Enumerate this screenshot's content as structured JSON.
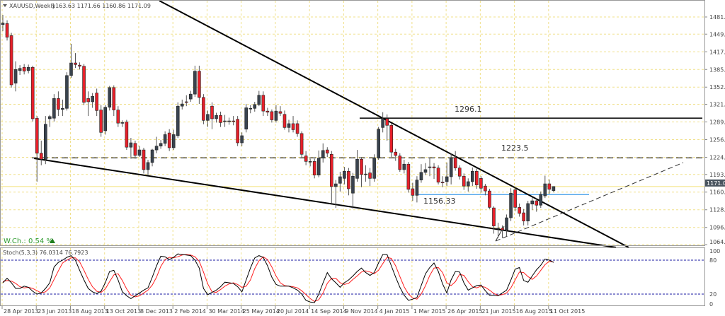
{
  "header": {
    "symbol": "XAUUSD,Weekly",
    "ohlc": "1163.63 1171.66 1160.86 1171.09"
  },
  "weekly_change": {
    "label": "W.Ch.: 0.54 %",
    "direction": "up"
  },
  "stoch_header": "Stoch(5,3,3) 76.0314 76.7923",
  "colors": {
    "bull": "#39434e",
    "bear": "#e8202a",
    "grid": "#f0e08a",
    "price_line": "#f3e27a",
    "stoch_k": "#000000",
    "stoch_d": "#ff2020",
    "stoch_levels": "#1a1aa0",
    "support_line": "#3a9ae8",
    "wch_text": "#2e9b2e"
  },
  "annotations": [
    {
      "name": "resistance-1296",
      "label": "1296.1",
      "price": 1296.1,
      "style": "solid"
    },
    {
      "name": "level-1223",
      "label": "1223.5",
      "price": 1223.5,
      "style": "dashed"
    },
    {
      "name": "support-1156",
      "label": "1156.33",
      "price": 1156.33,
      "style": "solid-blue"
    }
  ],
  "chart_data": [
    {
      "type": "candlestick",
      "title": "XAUUSD,Weekly",
      "ylim": [
        1064.95,
        1481.05
      ],
      "grid": true,
      "y_ticks": [
        "1481.05",
        "1449.70",
        "1417.40",
        "1385.10",
        "1352.80",
        "1321.45",
        "1289.15",
        "1256.85",
        "1224.55",
        "1193.20",
        "1160.90",
        "1128.60",
        "1096.30",
        "1064.95"
      ],
      "last_price": "1171.09",
      "x_ticks": [
        "28 Apr 2013",
        "23 Jun 2013",
        "18 Aug 2013",
        "13 Oct 2013",
        "8 Dec 2013",
        "2 Feb 2014",
        "30 Mar 2014",
        "25 May 2014",
        "20 Jul 2014",
        "14 Sep 2014",
        "9 Nov 2014",
        "4 Jan 2015",
        "1 Mar 2015",
        "26 Apr 2015",
        "21 Jun 2015",
        "16 Aug 2015",
        "11 Oct 2015"
      ],
      "ohlc": [
        [
          1467,
          1485,
          1455,
          1470
        ],
        [
          1469,
          1475,
          1438,
          1444
        ],
        [
          1447,
          1452,
          1352,
          1357
        ],
        [
          1360,
          1400,
          1345,
          1385
        ],
        [
          1383,
          1393,
          1375,
          1387
        ],
        [
          1389,
          1395,
          1376,
          1382
        ],
        [
          1383,
          1394,
          1378,
          1389
        ],
        [
          1389,
          1392,
          1290,
          1295
        ],
        [
          1296,
          1300,
          1180,
          1232
        ],
        [
          1232,
          1255,
          1210,
          1221
        ],
        [
          1221,
          1300,
          1212,
          1285
        ],
        [
          1295,
          1302,
          1280,
          1299
        ],
        [
          1296,
          1340,
          1290,
          1332
        ],
        [
          1332,
          1345,
          1300,
          1312
        ],
        [
          1312,
          1330,
          1300,
          1314
        ],
        [
          1314,
          1380,
          1310,
          1374
        ],
        [
          1374,
          1432,
          1370,
          1397
        ],
        [
          1397,
          1415,
          1388,
          1394
        ],
        [
          1393,
          1398,
          1385,
          1391
        ],
        [
          1391,
          1395,
          1320,
          1325
        ],
        [
          1332,
          1345,
          1300,
          1326
        ],
        [
          1326,
          1342,
          1315,
          1336
        ],
        [
          1342,
          1350,
          1300,
          1310
        ],
        [
          1311,
          1320,
          1262,
          1270
        ],
        [
          1273,
          1320,
          1266,
          1316
        ],
        [
          1316,
          1355,
          1310,
          1352
        ],
        [
          1352,
          1356,
          1300,
          1311
        ],
        [
          1311,
          1318,
          1280,
          1287
        ],
        [
          1287,
          1292,
          1280,
          1288
        ],
        [
          1289,
          1293,
          1238,
          1243
        ],
        [
          1243,
          1260,
          1222,
          1251
        ],
        [
          1250,
          1255,
          1222,
          1228
        ],
        [
          1228,
          1245,
          1225,
          1238
        ],
        [
          1238,
          1242,
          1195,
          1202
        ],
        [
          1202,
          1220,
          1192,
          1215
        ],
        [
          1215,
          1240,
          1208,
          1238
        ],
        [
          1238,
          1262,
          1232,
          1245
        ],
        [
          1245,
          1256,
          1240,
          1250
        ],
        [
          1250,
          1272,
          1245,
          1266
        ],
        [
          1269,
          1276,
          1236,
          1242
        ],
        [
          1242,
          1275,
          1238,
          1266
        ],
        [
          1264,
          1325,
          1260,
          1318
        ],
        [
          1318,
          1330,
          1312,
          1322
        ],
        [
          1326,
          1338,
          1318,
          1325
        ],
        [
          1331,
          1346,
          1326,
          1340
        ],
        [
          1340,
          1392,
          1335,
          1382
        ],
        [
          1382,
          1392,
          1322,
          1334
        ],
        [
          1334,
          1340,
          1285,
          1292
        ],
        [
          1292,
          1310,
          1280,
          1303
        ],
        [
          1318,
          1325,
          1276,
          1295
        ],
        [
          1295,
          1306,
          1288,
          1301
        ],
        [
          1301,
          1308,
          1280,
          1288
        ],
        [
          1291,
          1302,
          1280,
          1291
        ],
        [
          1291,
          1297,
          1284,
          1291
        ],
        [
          1291,
          1300,
          1283,
          1290
        ],
        [
          1294,
          1300,
          1245,
          1251
        ],
        [
          1251,
          1270,
          1245,
          1264
        ],
        [
          1276,
          1322,
          1270,
          1315
        ],
        [
          1314,
          1320,
          1305,
          1314
        ],
        [
          1314,
          1326,
          1308,
          1321
        ],
        [
          1321,
          1346,
          1318,
          1338
        ],
        [
          1338,
          1345,
          1300,
          1309
        ],
        [
          1309,
          1315,
          1300,
          1307
        ],
        [
          1308,
          1312,
          1288,
          1293
        ],
        [
          1292,
          1320,
          1288,
          1309
        ],
        [
          1308,
          1318,
          1300,
          1305
        ],
        [
          1303,
          1310,
          1275,
          1279
        ],
        [
          1279,
          1293,
          1270,
          1286
        ],
        [
          1286,
          1300,
          1270,
          1275
        ],
        [
          1286,
          1292,
          1262,
          1268
        ],
        [
          1268,
          1272,
          1224,
          1230
        ],
        [
          1227,
          1236,
          1210,
          1217
        ],
        [
          1217,
          1222,
          1208,
          1217
        ],
        [
          1217,
          1222,
          1186,
          1192
        ],
        [
          1192,
          1237,
          1188,
          1223
        ],
        [
          1223,
          1250,
          1215,
          1237
        ],
        [
          1238,
          1243,
          1225,
          1232
        ],
        [
          1230,
          1236,
          1140,
          1171
        ],
        [
          1171,
          1183,
          1132,
          1176
        ],
        [
          1177,
          1198,
          1162,
          1189
        ],
        [
          1186,
          1207,
          1175,
          1199
        ],
        [
          1199,
          1205,
          1155,
          1167
        ],
        [
          1159,
          1196,
          1131,
          1190
        ],
        [
          1186,
          1238,
          1180,
          1221
        ],
        [
          1221,
          1225,
          1170,
          1193
        ],
        [
          1194,
          1210,
          1180,
          1194
        ],
        [
          1196,
          1205,
          1172,
          1186
        ],
        [
          1186,
          1230,
          1180,
          1223
        ],
        [
          1223,
          1280,
          1220,
          1276
        ],
        [
          1279,
          1307,
          1270,
          1295
        ],
        [
          1295,
          1303,
          1255,
          1283
        ],
        [
          1283,
          1286,
          1225,
          1234
        ],
        [
          1234,
          1240,
          1218,
          1228
        ],
        [
          1227,
          1232,
          1198,
          1202
        ],
        [
          1202,
          1220,
          1195,
          1212
        ],
        [
          1212,
          1216,
          1160,
          1166
        ],
        [
          1167,
          1178,
          1145,
          1155
        ],
        [
          1155,
          1190,
          1142,
          1183
        ],
        [
          1183,
          1212,
          1178,
          1197
        ],
        [
          1197,
          1214,
          1192,
          1202
        ],
        [
          1207,
          1224,
          1190,
          1207
        ],
        [
          1207,
          1214,
          1185,
          1205
        ],
        [
          1205,
          1210,
          1175,
          1179
        ],
        [
          1179,
          1190,
          1170,
          1178
        ],
        [
          1180,
          1215,
          1172,
          1189
        ],
        [
          1189,
          1232,
          1175,
          1224
        ],
        [
          1224,
          1236,
          1200,
          1205
        ],
        [
          1205,
          1210,
          1184,
          1190
        ],
        [
          1190,
          1195,
          1165,
          1172
        ],
        [
          1172,
          1186,
          1162,
          1180
        ],
        [
          1180,
          1206,
          1172,
          1199
        ],
        [
          1199,
          1204,
          1167,
          1174
        ],
        [
          1186,
          1190,
          1160,
          1168
        ],
        [
          1172,
          1176,
          1155,
          1163
        ],
        [
          1163,
          1167,
          1130,
          1133
        ],
        [
          1132,
          1135,
          1085,
          1099
        ],
        [
          1095,
          1105,
          1077,
          1095
        ],
        [
          1095,
          1100,
          1077,
          1092
        ],
        [
          1092,
          1120,
          1080,
          1114
        ],
        [
          1114,
          1168,
          1108,
          1159
        ],
        [
          1165,
          1170,
          1126,
          1133
        ],
        [
          1133,
          1140,
          1116,
          1122
        ],
        [
          1123,
          1130,
          1100,
          1108
        ],
        [
          1108,
          1145,
          1100,
          1140
        ],
        [
          1139,
          1152,
          1128,
          1145
        ],
        [
          1145,
          1150,
          1125,
          1137
        ],
        [
          1137,
          1162,
          1132,
          1157
        ],
        [
          1154,
          1191,
          1150,
          1176
        ],
        [
          1176,
          1184,
          1158,
          1166
        ],
        [
          1163.63,
          1171.66,
          1160.86,
          1171.09
        ]
      ]
    },
    {
      "type": "line",
      "title": "Stoch(5,3,3) 76.0314 76.7923",
      "ylim": [
        0,
        100
      ],
      "y_ticks": [
        "100",
        "80",
        "20",
        "0"
      ],
      "levels": [
        80,
        20
      ],
      "series": [
        {
          "name": "K",
          "values": [
            40,
            48,
            40,
            30,
            30,
            34,
            32,
            25,
            20,
            22,
            30,
            40,
            68,
            76,
            80,
            85,
            88,
            80,
            62,
            45,
            30,
            24,
            21,
            25,
            40,
            60,
            62,
            45,
            24,
            17,
            12,
            17,
            22,
            27,
            31,
            50,
            70,
            87,
            86,
            81,
            85,
            91,
            90,
            89,
            88,
            80,
            66,
            30,
            19,
            23,
            27,
            33,
            41,
            40,
            39,
            33,
            24,
            45,
            66,
            84,
            88,
            85,
            70,
            50,
            37,
            34,
            34,
            34,
            31,
            27,
            20,
            9,
            6,
            5,
            20,
            40,
            58,
            47,
            40,
            32,
            40,
            45,
            52,
            60,
            66,
            58,
            53,
            58,
            75,
            90,
            90,
            70,
            50,
            32,
            18,
            9,
            11,
            14,
            35,
            56,
            67,
            75,
            60,
            38,
            22,
            45,
            60,
            59,
            40,
            27,
            31,
            35,
            36,
            26,
            18,
            18,
            17,
            22,
            27,
            45,
            64,
            67,
            44,
            41,
            52,
            63,
            71,
            82,
            80,
            76.03
          ]
        },
        {
          "name": "D",
          "values": [
            42,
            44,
            43,
            39,
            33,
            31,
            32,
            30,
            26,
            22,
            24,
            31,
            46,
            61,
            75,
            80,
            84,
            84,
            77,
            62,
            46,
            33,
            25,
            23,
            29,
            42,
            54,
            56,
            44,
            29,
            18,
            15,
            17,
            22,
            27,
            36,
            50,
            69,
            81,
            85,
            84,
            86,
            89,
            90,
            89,
            86,
            78,
            59,
            38,
            24,
            23,
            28,
            34,
            38,
            40,
            37,
            32,
            34,
            45,
            65,
            79,
            86,
            81,
            68,
            52,
            40,
            35,
            34,
            33,
            31,
            26,
            19,
            12,
            7,
            10,
            22,
            39,
            48,
            48,
            40,
            37,
            39,
            46,
            52,
            59,
            61,
            59,
            56,
            62,
            74,
            85,
            83,
            70,
            51,
            33,
            20,
            13,
            11,
            20,
            35,
            53,
            66,
            67,
            58,
            40,
            35,
            42,
            55,
            53,
            42,
            33,
            31,
            34,
            32,
            27,
            21,
            18,
            19,
            22,
            31,
            45,
            59,
            58,
            51,
            46,
            52,
            62,
            72,
            78,
            76.79
          ]
        }
      ]
    }
  ]
}
